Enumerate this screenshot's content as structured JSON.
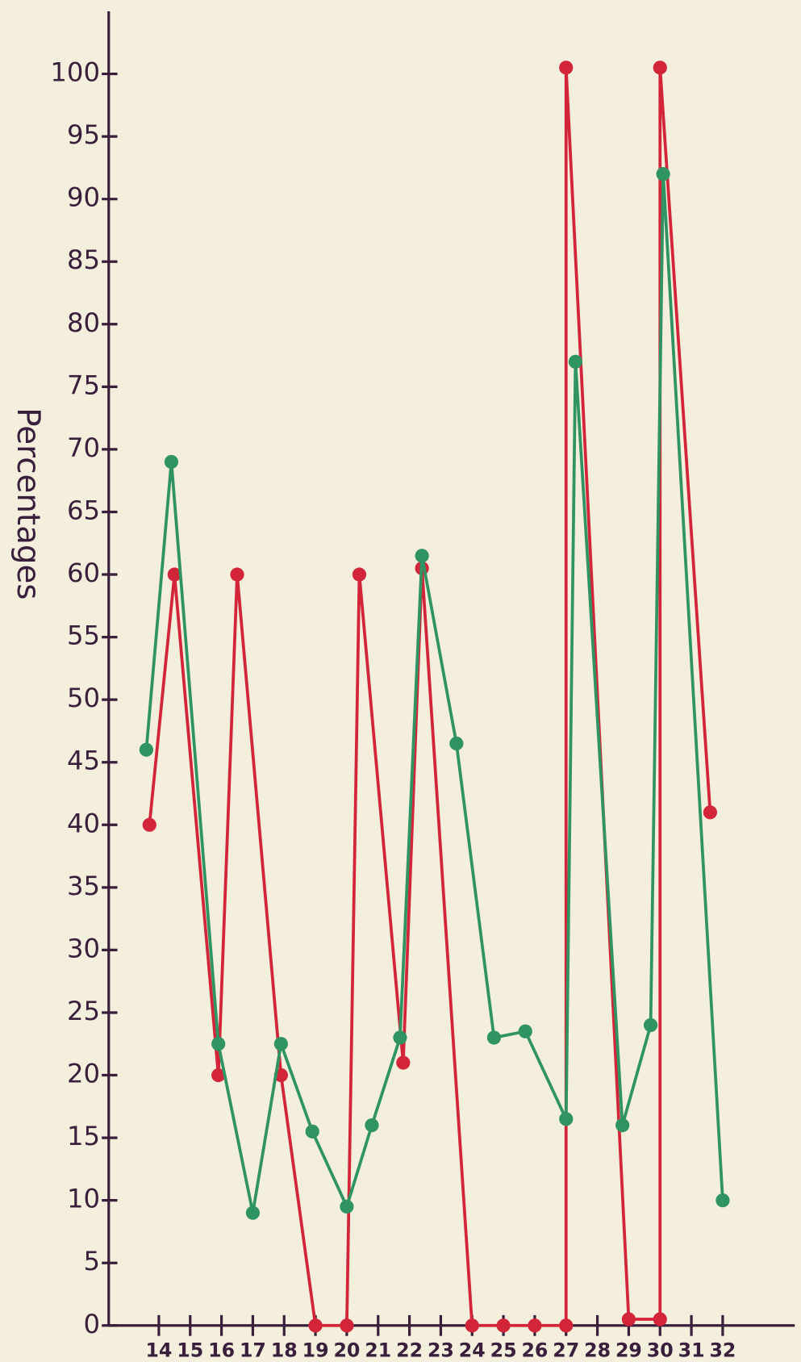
{
  "chart_data": {
    "type": "line",
    "y_label": "Percentages",
    "xlim": [
      12.4,
      34.3
    ],
    "ylim": [
      0,
      105
    ],
    "xticks": [
      14,
      15,
      16,
      17,
      18,
      19,
      20,
      21,
      22,
      23,
      24,
      25,
      26,
      27,
      28,
      29,
      30,
      31,
      32
    ],
    "yticks": [
      0,
      5,
      10,
      15,
      20,
      25,
      30,
      35,
      40,
      45,
      50,
      55,
      60,
      65,
      70,
      75,
      80,
      85,
      90,
      95,
      100
    ],
    "series": [
      {
        "color": "#d3253a",
        "x": [
          13.7,
          14.5,
          15.9,
          16.5,
          17.9,
          19,
          20,
          20.4,
          21.8,
          22.4,
          24,
          25,
          26,
          27,
          27,
          29,
          30,
          30,
          31.6
        ],
        "values": [
          40,
          60,
          20,
          60,
          20,
          0,
          0,
          60,
          21,
          60.5,
          0,
          0,
          0,
          0,
          100.5,
          0.5,
          0.5,
          100.5,
          41
        ]
      },
      {
        "color": "#2f9462",
        "x": [
          13.6,
          14.4,
          15.9,
          17,
          17.9,
          18.9,
          20,
          20.8,
          21.7,
          22.4,
          23.5,
          24.7,
          25.7,
          27,
          27.3,
          28.8,
          29.7,
          30.1,
          32
        ],
        "values": [
          46,
          69,
          22.5,
          9,
          22.5,
          15.5,
          9.5,
          16,
          23,
          61.5,
          46.5,
          23,
          23.5,
          16.5,
          77,
          16,
          24,
          92,
          10
        ]
      }
    ]
  }
}
